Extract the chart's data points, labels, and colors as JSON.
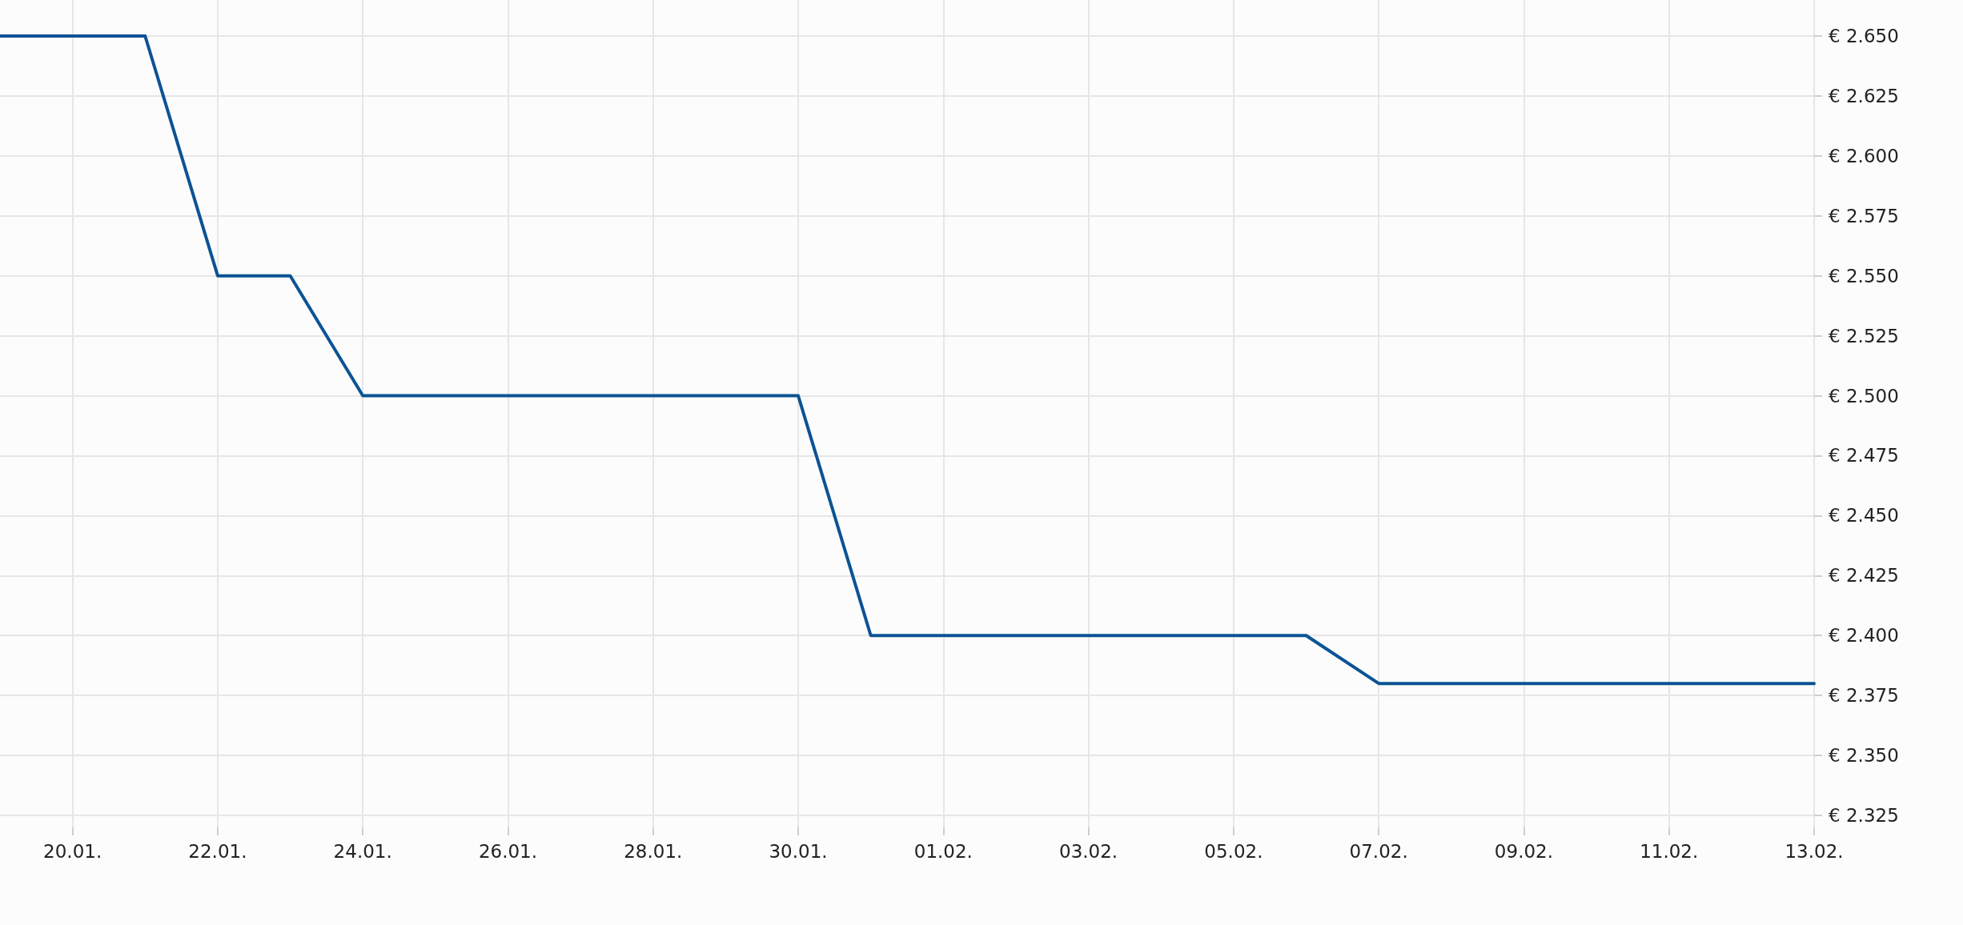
{
  "chart_data": {
    "type": "line",
    "x": [
      "--01-19",
      "--01-21",
      "--01-22",
      "--01-23",
      "--01-24",
      "--01-30",
      "--01-31",
      "--02-06",
      "--02-07",
      "--02-13"
    ],
    "series": [
      {
        "color": "#0b5394",
        "values": [
          2.65,
          2.65,
          2.55,
          2.55,
          2.5,
          2.5,
          2.4,
          2.4,
          2.38,
          2.38
        ]
      }
    ],
    "xlim": [
      "--01-19",
      "--02-13"
    ],
    "xticks": [
      {
        "value": "--01-20",
        "label": "20.01."
      },
      {
        "value": "--01-22",
        "label": "22.01."
      },
      {
        "value": "--01-24",
        "label": "24.01."
      },
      {
        "value": "--01-26",
        "label": "26.01."
      },
      {
        "value": "--01-28",
        "label": "28.01."
      },
      {
        "value": "--01-30",
        "label": "30.01."
      },
      {
        "value": "--02-01",
        "label": "01.02."
      },
      {
        "value": "--02-03",
        "label": "03.02."
      },
      {
        "value": "--02-05",
        "label": "05.02."
      },
      {
        "value": "--02-07",
        "label": "07.02."
      },
      {
        "value": "--02-09",
        "label": "09.02."
      },
      {
        "value": "--02-11",
        "label": "11.02."
      },
      {
        "value": "--02-13",
        "label": "13.02."
      }
    ],
    "ylim": [
      2.32,
      2.665
    ],
    "yticks": [
      {
        "value": 2.325,
        "label": "€ 2.325"
      },
      {
        "value": 2.35,
        "label": "€ 2.350"
      },
      {
        "value": 2.375,
        "label": "€ 2.375"
      },
      {
        "value": 2.4,
        "label": "€ 2.400"
      },
      {
        "value": 2.425,
        "label": "€ 2.425"
      },
      {
        "value": 2.45,
        "label": "€ 2.450"
      },
      {
        "value": 2.475,
        "label": "€ 2.475"
      },
      {
        "value": 2.5,
        "label": "€ 2.500"
      },
      {
        "value": 2.525,
        "label": "€ 2.525"
      },
      {
        "value": 2.55,
        "label": "€ 2.550"
      },
      {
        "value": 2.575,
        "label": "€ 2.575"
      },
      {
        "value": 2.6,
        "label": "€ 2.600"
      },
      {
        "value": 2.625,
        "label": "€ 2.625"
      },
      {
        "value": 2.65,
        "label": "€ 2.650"
      }
    ],
    "grid": true,
    "marker": "none",
    "line_style": "solid"
  }
}
